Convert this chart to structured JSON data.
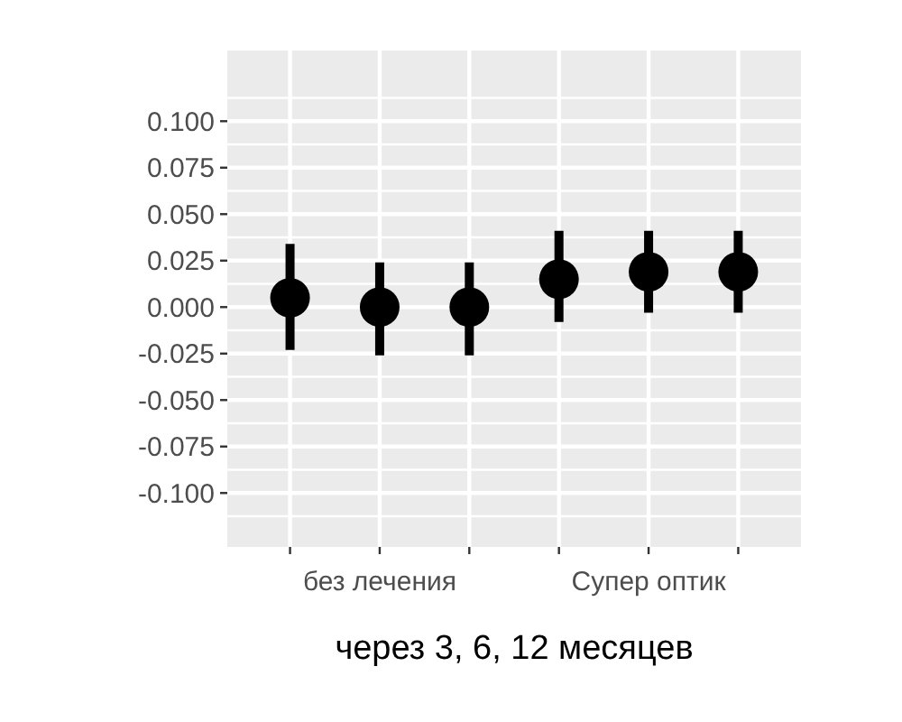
{
  "chart_data": {
    "type": "scatter",
    "xlabel": "через 3, 6, 12 месяцев",
    "categories": [
      null,
      "без лечения",
      null,
      null,
      "Супер оптик",
      null
    ],
    "values": [
      0.005,
      0,
      0,
      0.015,
      0.019,
      0.019
    ],
    "errors": [
      [
        -0.023,
        0.034
      ],
      [
        -0.026,
        0.024
      ],
      [
        -0.026,
        0.024
      ],
      [
        -0.008,
        0.041
      ],
      [
        -0.003,
        0.041
      ],
      [
        -0.003,
        0.041
      ]
    ],
    "color": "#000000",
    "marker": "circle",
    "ylim": [
      -0.129,
      0.138
    ],
    "yticks": [
      {
        "value": 0.1,
        "label": "0.100"
      },
      {
        "value": 0.075,
        "label": "0.075"
      },
      {
        "value": 0.05,
        "label": "0.050"
      },
      {
        "value": 0.025,
        "label": "0.025"
      },
      {
        "value": 0,
        "label": "0.000"
      },
      {
        "value": -0.025,
        "label": "-0.025"
      },
      {
        "value": -0.05,
        "label": "-0.050"
      },
      {
        "value": -0.075,
        "label": "-0.075"
      },
      {
        "value": -0.1,
        "label": "-0.100"
      }
    ],
    "grid": true
  }
}
